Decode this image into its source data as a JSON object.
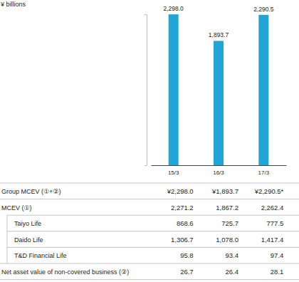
{
  "chart_data": {
    "type": "bar",
    "y_label": "¥ billions",
    "categories": [
      "15/3",
      "16/3",
      "17/3"
    ],
    "values": [
      2298.0,
      1893.7,
      2290.5
    ],
    "value_labels": [
      "2,298.0",
      "1,893.7",
      "2,290.5"
    ],
    "data_labels": true,
    "color": "#20a5d5",
    "ylim": [
      0,
      2300
    ],
    "yticks": [],
    "tick_labels": "x"
  },
  "table": {
    "rows": [
      {
        "label": "Group MCEV (①+②)",
        "cells": [
          "¥2,298.0",
          "¥1,893.7",
          "¥2,290.5*"
        ]
      },
      {
        "label": "MCEV (①)",
        "cells": [
          "2,271.2",
          "1,867.2",
          "2,262.4"
        ],
        "children": [
          {
            "label": "Taiyo Life",
            "cells": [
              "868.6",
              "725.7",
              "777.5"
            ]
          },
          {
            "label": "Daido Life",
            "cells": [
              "1,306.7",
              "1,078.0",
              "1,417.4"
            ]
          },
          {
            "label": "T&D Financial Life",
            "cells": [
              "95.8",
              "93.4",
              "97.4"
            ]
          }
        ]
      },
      {
        "label": "Net asset value of non-covered business (②)",
        "cells": [
          "26.7",
          "26.4",
          "28.1"
        ]
      }
    ]
  }
}
